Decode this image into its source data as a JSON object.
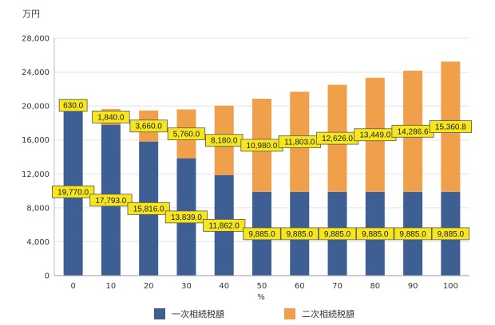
{
  "chart_data": {
    "type": "bar",
    "stacked": true,
    "unit_label": "万円",
    "xlabel": "%",
    "categories": [
      "0",
      "10",
      "20",
      "30",
      "40",
      "50",
      "60",
      "70",
      "80",
      "90",
      "100"
    ],
    "series": [
      {
        "name": "一次相続税額",
        "color": "#3d5f94",
        "values": [
          19770.0,
          17793.0,
          15816.0,
          13839.0,
          11862.0,
          9885.0,
          9885.0,
          9885.0,
          9885.0,
          9885.0,
          9885.0
        ],
        "labels": [
          "19,770.0",
          "17,793.0",
          "15,816.0",
          "13,839.0",
          "11,862.0",
          "9,885.0",
          "9,885.0",
          "9,885.0",
          "9,885.0",
          "9,885.0",
          "9,885.0"
        ]
      },
      {
        "name": "二次相続税額",
        "color": "#f0a04b",
        "values": [
          630.0,
          1840.0,
          3660.0,
          5760.0,
          8180.0,
          10980.0,
          11803.0,
          12626.0,
          13449.0,
          14286.6,
          15360.8
        ],
        "labels": [
          "630.0",
          "1,840.0",
          "3,660.0",
          "5,760.0",
          "8,180.0",
          "10,980.0",
          "11,803.0",
          "12,626.0",
          "13,449.0",
          "14,286.6",
          "15,360.8"
        ]
      }
    ],
    "ylim": [
      0,
      28000
    ],
    "yticks": [
      0,
      4000,
      8000,
      12000,
      16000,
      20000,
      24000,
      28000
    ],
    "ytick_labels": [
      "0",
      "4,000",
      "8,000",
      "12,000",
      "16,000",
      "20,000",
      "24,000",
      "28,000"
    ],
    "grid": true,
    "legend_position": "bottom",
    "label_box_color": "#f5e61e"
  }
}
